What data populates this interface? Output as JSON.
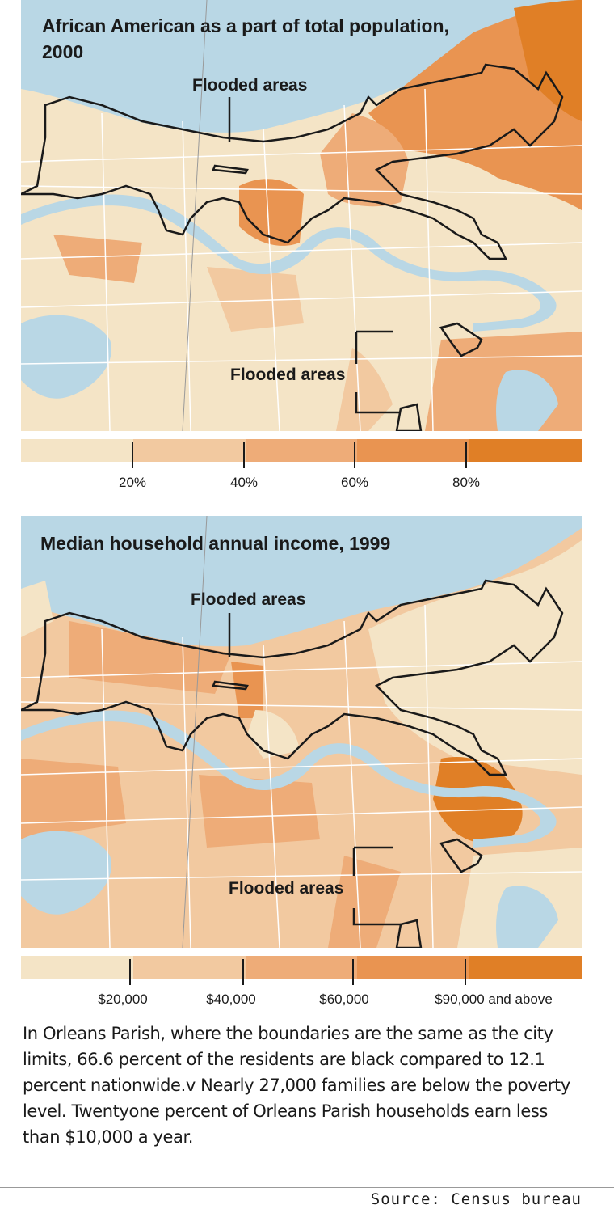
{
  "colors": {
    "water": "#b9d7e5",
    "land": "#f4e4c6",
    "boundary": "#1a1a1a",
    "road": "#ffffff",
    "scale": [
      "#f4e4c6",
      "#f2c9a0",
      "#eeac78",
      "#e99451",
      "#e07f26"
    ]
  },
  "map1": {
    "title": "African American as a part of total population, 2000",
    "flood_label_top": "Flooded areas",
    "flood_label_bottom": "Flooded areas",
    "legend": {
      "ticks": [
        "20%",
        "40%",
        "60%",
        "80%"
      ]
    }
  },
  "map2": {
    "title": "Median household annual income, 1999",
    "flood_label_top": "Flooded areas",
    "flood_label_bottom": "Flooded areas",
    "legend": {
      "ticks": [
        "$20,000",
        "$40,000",
        "$60,000",
        "$90,000 and above"
      ]
    }
  },
  "caption": "In Orleans Parish, where the boundaries are the same as the city limits, 66.6 percent of the residents are black compared to 12.1 percent nationwide.v Nearly 27,000 families are below the poverty level. Twentyone percent of Orleans Parish households earn less than $10,000 a year.",
  "source": "Source: Census bureau"
}
